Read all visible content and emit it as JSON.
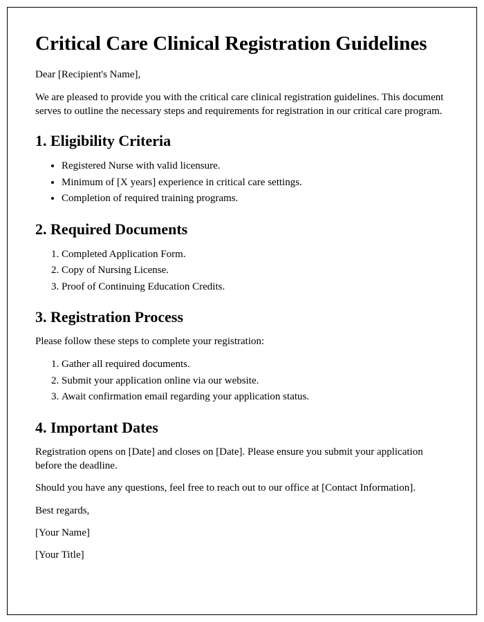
{
  "title": "Critical Care Clinical Registration Guidelines",
  "greeting": "Dear [Recipient's Name],",
  "intro": "We are pleased to provide you with the critical care clinical registration guidelines. This document serves to outline the necessary steps and requirements for registration in our critical care program.",
  "sections": {
    "s1": {
      "heading": "1. Eligibility Criteria",
      "items": [
        "Registered Nurse with valid licensure.",
        "Minimum of [X years] experience in critical care settings.",
        "Completion of required training programs."
      ]
    },
    "s2": {
      "heading": "2. Required Documents",
      "items": [
        "Completed Application Form.",
        "Copy of Nursing License.",
        "Proof of Continuing Education Credits."
      ]
    },
    "s3": {
      "heading": "3. Registration Process",
      "lead": "Please follow these steps to complete your registration:",
      "items": [
        "Gather all required documents.",
        "Submit your application online via our website.",
        "Await confirmation email regarding your application status."
      ]
    },
    "s4": {
      "heading": "4. Important Dates",
      "body": "Registration opens on [Date] and closes on [Date]. Please ensure you submit your application before the deadline."
    }
  },
  "contact": "Should you have any questions, feel free to reach out to our office at [Contact Information].",
  "closing": "Best regards,",
  "name": "[Your Name]",
  "title_line": "[Your Title]"
}
